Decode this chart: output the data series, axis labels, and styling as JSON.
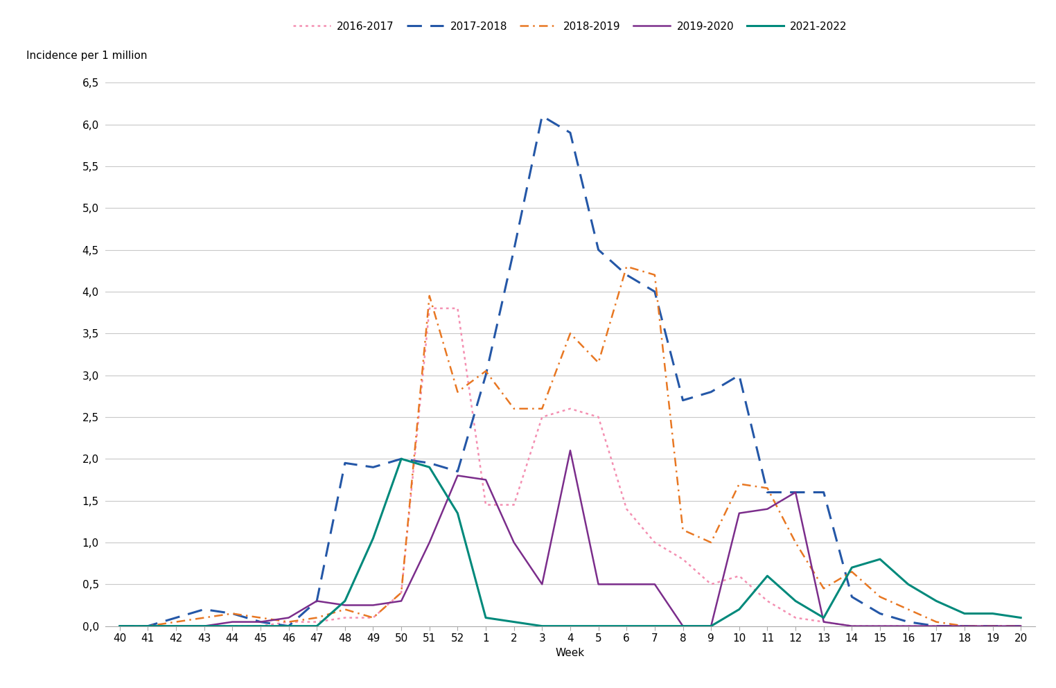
{
  "weeks_labels": [
    "40",
    "41",
    "42",
    "43",
    "44",
    "45",
    "46",
    "47",
    "48",
    "49",
    "50",
    "51",
    "52",
    "1",
    "2",
    "3",
    "4",
    "5",
    "6",
    "7",
    "8",
    "9",
    "10",
    "11",
    "12",
    "13",
    "14",
    "15",
    "16",
    "17",
    "18",
    "19",
    "20"
  ],
  "series": [
    {
      "label": "2016-2017",
      "color": "#F48FB1",
      "linestyle": "dotted",
      "linewidth": 1.8,
      "data": [
        0.0,
        0.0,
        0.0,
        0.0,
        0.0,
        0.0,
        0.05,
        0.05,
        0.1,
        0.1,
        0.4,
        3.8,
        3.8,
        1.45,
        1.45,
        2.5,
        2.6,
        2.5,
        1.4,
        1.0,
        0.8,
        0.5,
        0.6,
        0.3,
        0.1,
        0.05,
        0.0,
        0.0,
        0.0,
        0.0,
        0.0,
        0.0,
        0.0
      ]
    },
    {
      "label": "2017-2018",
      "color": "#2457A7",
      "linestyle": "long_dash",
      "linewidth": 2.2,
      "data": [
        0.0,
        0.0,
        0.1,
        0.2,
        0.15,
        0.05,
        0.0,
        0.3,
        1.95,
        1.9,
        2.0,
        1.95,
        1.85,
        3.0,
        4.5,
        6.1,
        5.9,
        4.5,
        4.2,
        4.0,
        2.7,
        2.8,
        3.0,
        1.6,
        1.6,
        1.6,
        0.35,
        0.15,
        0.05,
        0.0,
        0.0,
        0.0,
        0.0
      ]
    },
    {
      "label": "2018-2019",
      "color": "#E87722",
      "linestyle": "dash_dot",
      "linewidth": 1.8,
      "data": [
        0.0,
        0.0,
        0.05,
        0.1,
        0.15,
        0.1,
        0.05,
        0.1,
        0.2,
        0.1,
        0.4,
        3.95,
        2.8,
        3.05,
        2.6,
        2.6,
        3.5,
        3.15,
        4.3,
        4.2,
        1.15,
        1.0,
        1.7,
        1.65,
        1.0,
        0.45,
        0.65,
        0.35,
        0.2,
        0.05,
        0.0,
        0.0,
        0.0
      ]
    },
    {
      "label": "2019-2020",
      "color": "#7B2D8B",
      "linestyle": "solid",
      "linewidth": 1.8,
      "data": [
        0.0,
        0.0,
        0.0,
        0.0,
        0.05,
        0.05,
        0.1,
        0.3,
        0.25,
        0.25,
        0.3,
        1.0,
        1.8,
        1.75,
        1.0,
        0.5,
        2.1,
        0.5,
        0.5,
        0.5,
        0.0,
        0.0,
        1.35,
        1.4,
        1.6,
        0.05,
        0.0,
        0.0,
        0.0,
        0.0,
        0.0,
        0.0,
        0.0
      ]
    },
    {
      "label": "2021-2022",
      "color": "#00897B",
      "linestyle": "solid",
      "linewidth": 2.2,
      "data": [
        0.0,
        0.0,
        0.0,
        0.0,
        0.0,
        0.0,
        0.0,
        0.0,
        0.3,
        1.05,
        2.0,
        1.9,
        1.35,
        0.1,
        0.05,
        0.0,
        0.0,
        0.0,
        0.0,
        0.0,
        0.0,
        0.0,
        0.2,
        0.6,
        0.3,
        0.1,
        0.7,
        0.8,
        0.5,
        0.3,
        0.15,
        0.15,
        0.1
      ]
    }
  ],
  "xlabel": "Week",
  "ylabel": "Incidence per 1 million",
  "ylim": [
    0.0,
    6.5
  ],
  "yticks": [
    0.0,
    0.5,
    1.0,
    1.5,
    2.0,
    2.5,
    3.0,
    3.5,
    4.0,
    4.5,
    5.0,
    5.5,
    6.0,
    6.5
  ],
  "ytick_labels": [
    "0,0",
    "0,5",
    "1,0",
    "1,5",
    "2,0",
    "2,5",
    "3,0",
    "3,5",
    "4,0",
    "4,5",
    "5,0",
    "5,5",
    "6,0",
    "6,5"
  ],
  "background_color": "#FFFFFF",
  "grid_color": "#C8C8C8",
  "tick_fontsize": 11,
  "axis_label_fontsize": 11,
  "legend_fontsize": 11
}
